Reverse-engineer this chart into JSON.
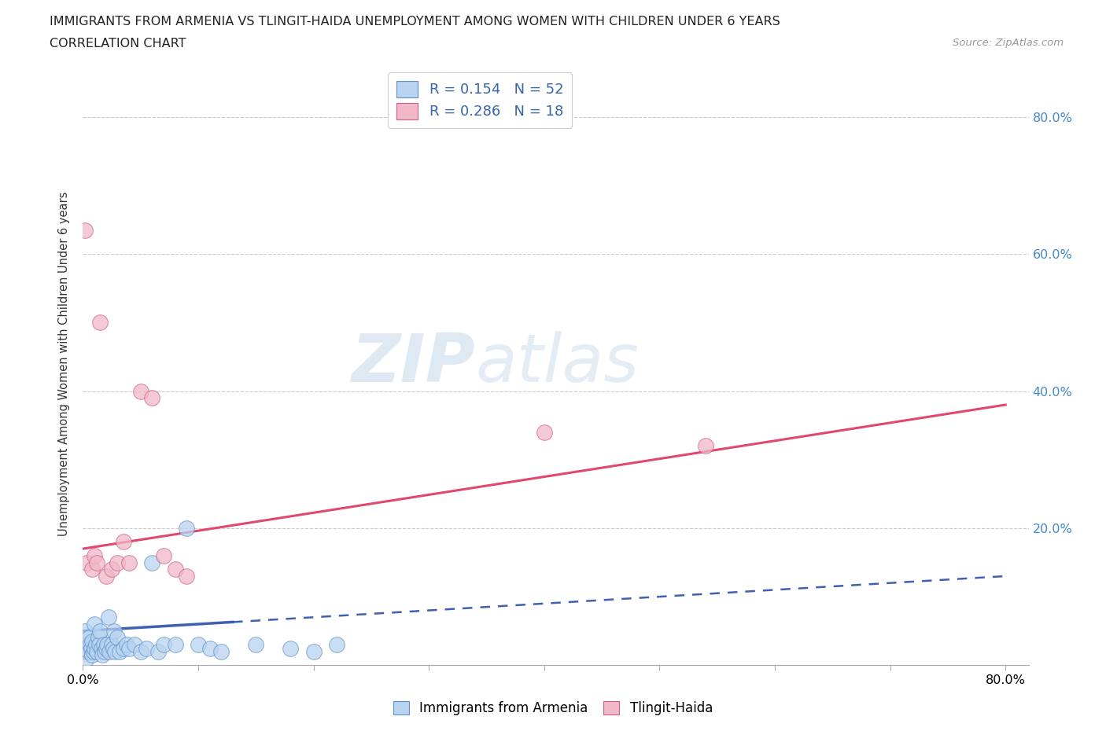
{
  "title_line1": "IMMIGRANTS FROM ARMENIA VS TLINGIT-HAIDA UNEMPLOYMENT AMONG WOMEN WITH CHILDREN UNDER 6 YEARS",
  "title_line2": "CORRELATION CHART",
  "source_text": "Source: ZipAtlas.com",
  "ylabel": "Unemployment Among Women with Children Under 6 years",
  "xlim": [
    0.0,
    0.82
  ],
  "ylim": [
    0.0,
    0.88
  ],
  "xtick_positions": [
    0.0,
    0.1,
    0.2,
    0.3,
    0.4,
    0.5,
    0.6,
    0.7,
    0.8
  ],
  "xticklabels": [
    "0.0%",
    "",
    "",
    "",
    "",
    "",
    "",
    "",
    "80.0%"
  ],
  "ytick_positions": [
    0.0,
    0.2,
    0.4,
    0.6,
    0.8
  ],
  "yticklabels_right": [
    "",
    "20.0%",
    "40.0%",
    "60.0%",
    "80.0%"
  ],
  "legend_r1": "R = 0.154",
  "legend_n1": "N = 52",
  "legend_r2": "R = 0.286",
  "legend_n2": "N = 18",
  "color_armenia_fill": "#b8d4f0",
  "color_armenia_edge": "#6090c8",
  "color_tlingit_fill": "#f0b8c8",
  "color_tlingit_edge": "#d06080",
  "color_line_armenia": "#4060b0",
  "color_line_tlingit": "#e04870",
  "background_color": "#ffffff",
  "armenia_x": [
    0.001,
    0.002,
    0.002,
    0.003,
    0.003,
    0.004,
    0.005,
    0.005,
    0.006,
    0.007,
    0.008,
    0.008,
    0.009,
    0.01,
    0.01,
    0.011,
    0.012,
    0.013,
    0.014,
    0.015,
    0.016,
    0.017,
    0.018,
    0.019,
    0.02,
    0.021,
    0.022,
    0.023,
    0.025,
    0.026,
    0.027,
    0.028,
    0.03,
    0.032,
    0.035,
    0.038,
    0.04,
    0.045,
    0.05,
    0.055,
    0.06,
    0.065,
    0.07,
    0.08,
    0.09,
    0.1,
    0.11,
    0.12,
    0.15,
    0.18,
    0.2,
    0.22
  ],
  "armenia_y": [
    0.03,
    0.02,
    0.05,
    0.01,
    0.03,
    0.025,
    0.02,
    0.04,
    0.03,
    0.025,
    0.015,
    0.035,
    0.02,
    0.025,
    0.06,
    0.03,
    0.02,
    0.04,
    0.03,
    0.05,
    0.025,
    0.015,
    0.03,
    0.02,
    0.025,
    0.03,
    0.07,
    0.02,
    0.03,
    0.025,
    0.05,
    0.02,
    0.04,
    0.02,
    0.025,
    0.03,
    0.025,
    0.03,
    0.02,
    0.025,
    0.15,
    0.02,
    0.03,
    0.03,
    0.2,
    0.03,
    0.025,
    0.02,
    0.03,
    0.025,
    0.02,
    0.03
  ],
  "tlingit_x": [
    0.002,
    0.003,
    0.008,
    0.01,
    0.012,
    0.015,
    0.02,
    0.025,
    0.03,
    0.035,
    0.04,
    0.05,
    0.06,
    0.07,
    0.08,
    0.09,
    0.4,
    0.54
  ],
  "tlingit_y": [
    0.635,
    0.15,
    0.14,
    0.16,
    0.15,
    0.5,
    0.13,
    0.14,
    0.15,
    0.18,
    0.15,
    0.4,
    0.39,
    0.16,
    0.14,
    0.13,
    0.34,
    0.32
  ],
  "line_armenia_x0": 0.0,
  "line_armenia_x1": 0.8,
  "line_armenia_y0": 0.05,
  "line_armenia_y1": 0.13,
  "line_tlingit_x0": 0.0,
  "line_tlingit_x1": 0.8,
  "line_tlingit_y0": 0.17,
  "line_tlingit_y1": 0.38,
  "line_armenia_solid_x1": 0.13
}
